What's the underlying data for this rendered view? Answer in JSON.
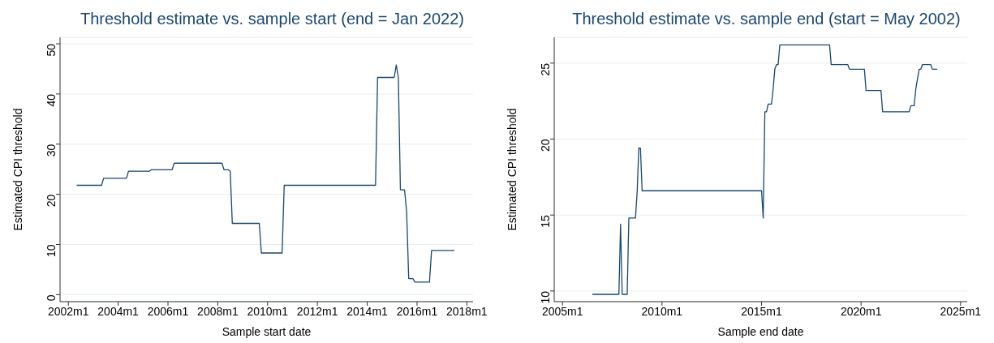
{
  "chart_data": [
    {
      "type": "line",
      "title": "Threshold estimate vs. sample start (end = Jan 2022)",
      "xlabel": "Sample start date",
      "ylabel": "Estimated CPI threshold",
      "xlim": [
        "2001-09",
        "2018-04"
      ],
      "xticks": [
        {
          "value": "2002-01",
          "label": "2002m1"
        },
        {
          "value": "2004-01",
          "label": "2004m1"
        },
        {
          "value": "2006-01",
          "label": "2006m1"
        },
        {
          "value": "2008-01",
          "label": "2008m1"
        },
        {
          "value": "2010-01",
          "label": "2010m1"
        },
        {
          "value": "2012-01",
          "label": "2012m1"
        },
        {
          "value": "2014-01",
          "label": "2014m1"
        },
        {
          "value": "2016-01",
          "label": "2016m1"
        },
        {
          "value": "2018-01",
          "label": "2018m1"
        }
      ],
      "ylim": [
        -1.4,
        51.3
      ],
      "yticks": [
        0,
        10,
        20,
        30,
        40,
        50
      ],
      "grid": "y",
      "series": [
        {
          "color": "#1a476f",
          "x": [
            "2002-05",
            "2003-05",
            "2003-06",
            "2004-05",
            "2004-06",
            "2005-04",
            "2005-05",
            "2006-03",
            "2006-04",
            "2008-03",
            "2008-04",
            "2008-06",
            "2008-07",
            "2008-08",
            "2009-09",
            "2009-10",
            "2010-08",
            "2010-09",
            "2014-05",
            "2014-06",
            "2015-02",
            "2015-03",
            "2015-04",
            "2015-05",
            "2015-07",
            "2015-08",
            "2015-09",
            "2015-11",
            "2015-12",
            "2016-07",
            "2016-08",
            "2017-07"
          ],
          "values": [
            21.8,
            21.8,
            23.2,
            23.2,
            24.6,
            24.6,
            24.9,
            24.9,
            26.2,
            26.2,
            24.9,
            24.9,
            24.6,
            14.2,
            14.2,
            8.3,
            8.3,
            21.8,
            21.8,
            43.3,
            43.3,
            45.8,
            43.3,
            20.9,
            20.9,
            16.4,
            3.2,
            3.2,
            2.5,
            2.5,
            8.8,
            8.8
          ]
        }
      ]
    },
    {
      "type": "line",
      "title": "Threshold estimate vs. sample end (start = May 2002)",
      "xlabel": "Sample end date",
      "ylabel": "Estimated CPI threshold",
      "xlim": [
        "2004-08",
        "2025-05"
      ],
      "xticks": [
        {
          "value": "2005-01",
          "label": "2005m1"
        },
        {
          "value": "2010-01",
          "label": "2010m1"
        },
        {
          "value": "2015-01",
          "label": "2015m1"
        },
        {
          "value": "2020-01",
          "label": "2020m1"
        },
        {
          "value": "2025-01",
          "label": "2025m1"
        }
      ],
      "ylim": [
        9.3,
        26.7
      ],
      "yticks": [
        10,
        15,
        20,
        25
      ],
      "grid": "y",
      "series": [
        {
          "color": "#1a476f",
          "x": [
            "2006-07",
            "2007-11",
            "2007-12",
            "2008-01",
            "2008-04",
            "2008-05",
            "2008-09",
            "2008-10",
            "2008-11",
            "2008-12",
            "2009-01",
            "2015-01",
            "2015-02",
            "2015-03",
            "2015-04",
            "2015-05",
            "2015-07",
            "2015-08",
            "2015-09",
            "2015-10",
            "2015-11",
            "2015-12",
            "2018-06",
            "2018-07",
            "2019-05",
            "2019-06",
            "2020-03",
            "2020-04",
            "2021-01",
            "2021-02",
            "2022-06",
            "2022-07",
            "2022-09",
            "2022-10",
            "2022-12",
            "2023-01",
            "2023-02",
            "2023-07",
            "2023-08",
            "2023-11"
          ],
          "values": [
            9.78,
            9.78,
            14.4,
            9.78,
            9.78,
            14.8,
            14.8,
            16.5,
            19.4,
            19.4,
            16.6,
            16.6,
            14.8,
            21.8,
            21.8,
            22.3,
            22.3,
            23.3,
            24.6,
            24.9,
            24.9,
            26.2,
            26.2,
            24.9,
            24.9,
            24.6,
            24.6,
            23.2,
            23.2,
            21.8,
            21.8,
            22.2,
            22.2,
            23.3,
            24.6,
            24.6,
            24.9,
            24.9,
            24.6,
            24.6
          ]
        }
      ]
    }
  ]
}
